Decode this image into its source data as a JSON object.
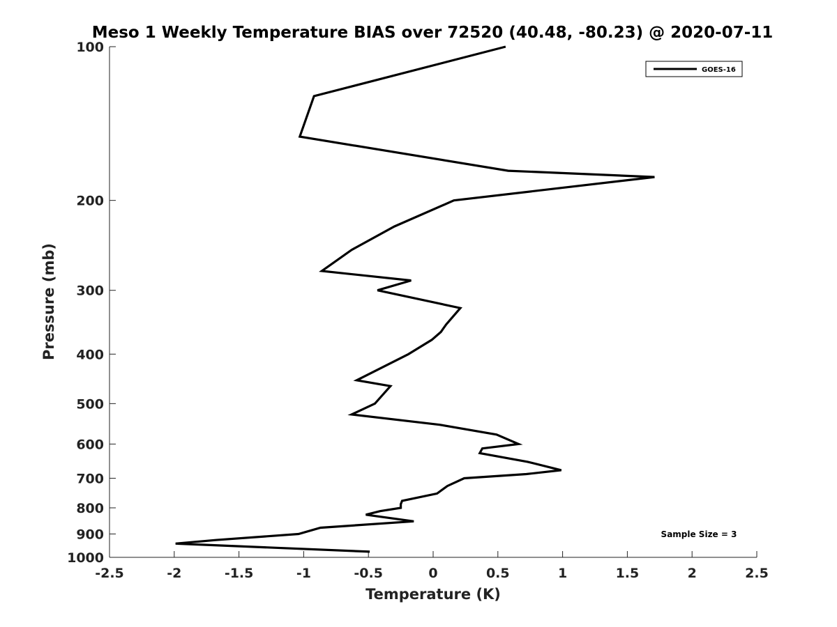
{
  "chart_data": {
    "type": "line",
    "title": "Meso 1 Weekly Temperature BIAS over 72520 (40.48, -80.23) @ 2020-07-11",
    "xlabel": "Temperature (K)",
    "ylabel": "Pressure (mb)",
    "xlim": [
      -2.5,
      2.5
    ],
    "ylim": [
      100,
      1000
    ],
    "y_scale": "log",
    "y_reversed": true,
    "grid": false,
    "x_ticks": [
      -2.5,
      -2,
      -1.5,
      -1,
      -0.5,
      0,
      0.5,
      1,
      1.5,
      2,
      2.5
    ],
    "x_tick_labels": [
      "-2.5",
      "-2",
      "-1.5",
      "-1",
      "-0.5",
      "0",
      "0.5",
      "1",
      "1.5",
      "2",
      "2.5"
    ],
    "y_ticks": [
      100,
      200,
      300,
      400,
      500,
      600,
      700,
      800,
      900,
      1000
    ],
    "y_tick_labels": [
      "100",
      "200",
      "300",
      "400",
      "500",
      "600",
      "700",
      "800",
      "900",
      "1000"
    ],
    "legend": {
      "position": "top-right",
      "entries": [
        "GOES-16"
      ]
    },
    "annotation": "Sample Size = 3",
    "series": [
      {
        "name": "GOES-16",
        "color": "#000000",
        "points": [
          [
            0.56,
            100
          ],
          [
            -0.92,
            125
          ],
          [
            -1.03,
            150
          ],
          [
            0.58,
            175
          ],
          [
            1.71,
            180
          ],
          [
            0.16,
            200
          ],
          [
            -0.3,
            225
          ],
          [
            -0.63,
            250
          ],
          [
            -0.86,
            275
          ],
          [
            -0.17,
            287
          ],
          [
            -0.43,
            300
          ],
          [
            0.21,
            325
          ],
          [
            0.1,
            350
          ],
          [
            0.06,
            362
          ],
          [
            -0.01,
            375
          ],
          [
            -0.19,
            400
          ],
          [
            -0.59,
            450
          ],
          [
            -0.33,
            462
          ],
          [
            -0.41,
            487
          ],
          [
            -0.45,
            500
          ],
          [
            -0.63,
            525
          ],
          [
            0.05,
            550
          ],
          [
            0.49,
            575
          ],
          [
            0.66,
            600
          ],
          [
            0.38,
            612
          ],
          [
            0.36,
            625
          ],
          [
            0.73,
            650
          ],
          [
            0.99,
            675
          ],
          [
            0.72,
            687
          ],
          [
            0.24,
            700
          ],
          [
            0.11,
            725
          ],
          [
            0.03,
            750
          ],
          [
            -0.24,
            775
          ],
          [
            -0.25,
            787
          ],
          [
            -0.25,
            800
          ],
          [
            -0.41,
            812
          ],
          [
            -0.52,
            825
          ],
          [
            -0.15,
            850
          ],
          [
            -0.87,
            875
          ],
          [
            -1.04,
            900
          ],
          [
            -1.68,
            925
          ],
          [
            -1.99,
            940
          ],
          [
            -0.49,
            975
          ]
        ]
      }
    ]
  }
}
